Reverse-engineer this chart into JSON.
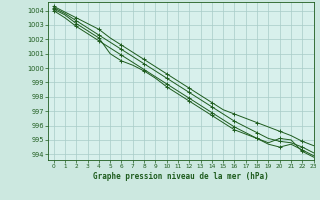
{
  "title": "Graphe pression niveau de la mer (hPa)",
  "background_color": "#cce8e0",
  "plot_bg_color": "#d8f0ec",
  "grid_color": "#a8ccc8",
  "line_color": "#1e5c1e",
  "xlim": [
    -0.5,
    23
  ],
  "ylim": [
    993.6,
    1004.6
  ],
  "yticks": [
    994,
    995,
    996,
    997,
    998,
    999,
    1000,
    1001,
    1002,
    1003,
    1004
  ],
  "xticks": [
    0,
    1,
    2,
    3,
    4,
    5,
    6,
    7,
    8,
    9,
    10,
    11,
    12,
    13,
    14,
    15,
    16,
    17,
    18,
    19,
    20,
    21,
    22,
    23
  ],
  "series": [
    [
      1004.1,
      1003.7,
      1003.1,
      1002.6,
      1002.1,
      1001.0,
      1000.5,
      1000.2,
      999.8,
      999.3,
      998.7,
      998.2,
      997.7,
      997.2,
      996.7,
      996.2,
      995.7,
      995.4,
      995.1,
      994.8,
      995.1,
      995.0,
      994.2,
      993.8
    ],
    [
      1004.2,
      1003.8,
      1003.3,
      1002.8,
      1002.3,
      1001.8,
      1001.3,
      1000.8,
      1000.3,
      999.8,
      999.3,
      998.8,
      998.3,
      997.8,
      997.3,
      996.8,
      996.3,
      995.9,
      995.5,
      995.1,
      994.9,
      994.8,
      994.5,
      994.1
    ],
    [
      1004.3,
      1003.9,
      1003.5,
      1003.1,
      1002.7,
      1002.1,
      1001.6,
      1001.1,
      1000.6,
      1000.1,
      999.6,
      999.1,
      998.6,
      998.1,
      997.6,
      997.1,
      996.8,
      996.5,
      996.2,
      995.9,
      995.6,
      995.3,
      994.9,
      994.6
    ],
    [
      1004.0,
      1003.5,
      1002.9,
      1002.4,
      1001.9,
      1001.4,
      1000.9,
      1000.4,
      999.9,
      999.4,
      998.9,
      998.4,
      997.9,
      997.4,
      996.9,
      996.4,
      995.9,
      995.5,
      995.1,
      994.7,
      994.5,
      994.7,
      994.3,
      993.9
    ]
  ]
}
